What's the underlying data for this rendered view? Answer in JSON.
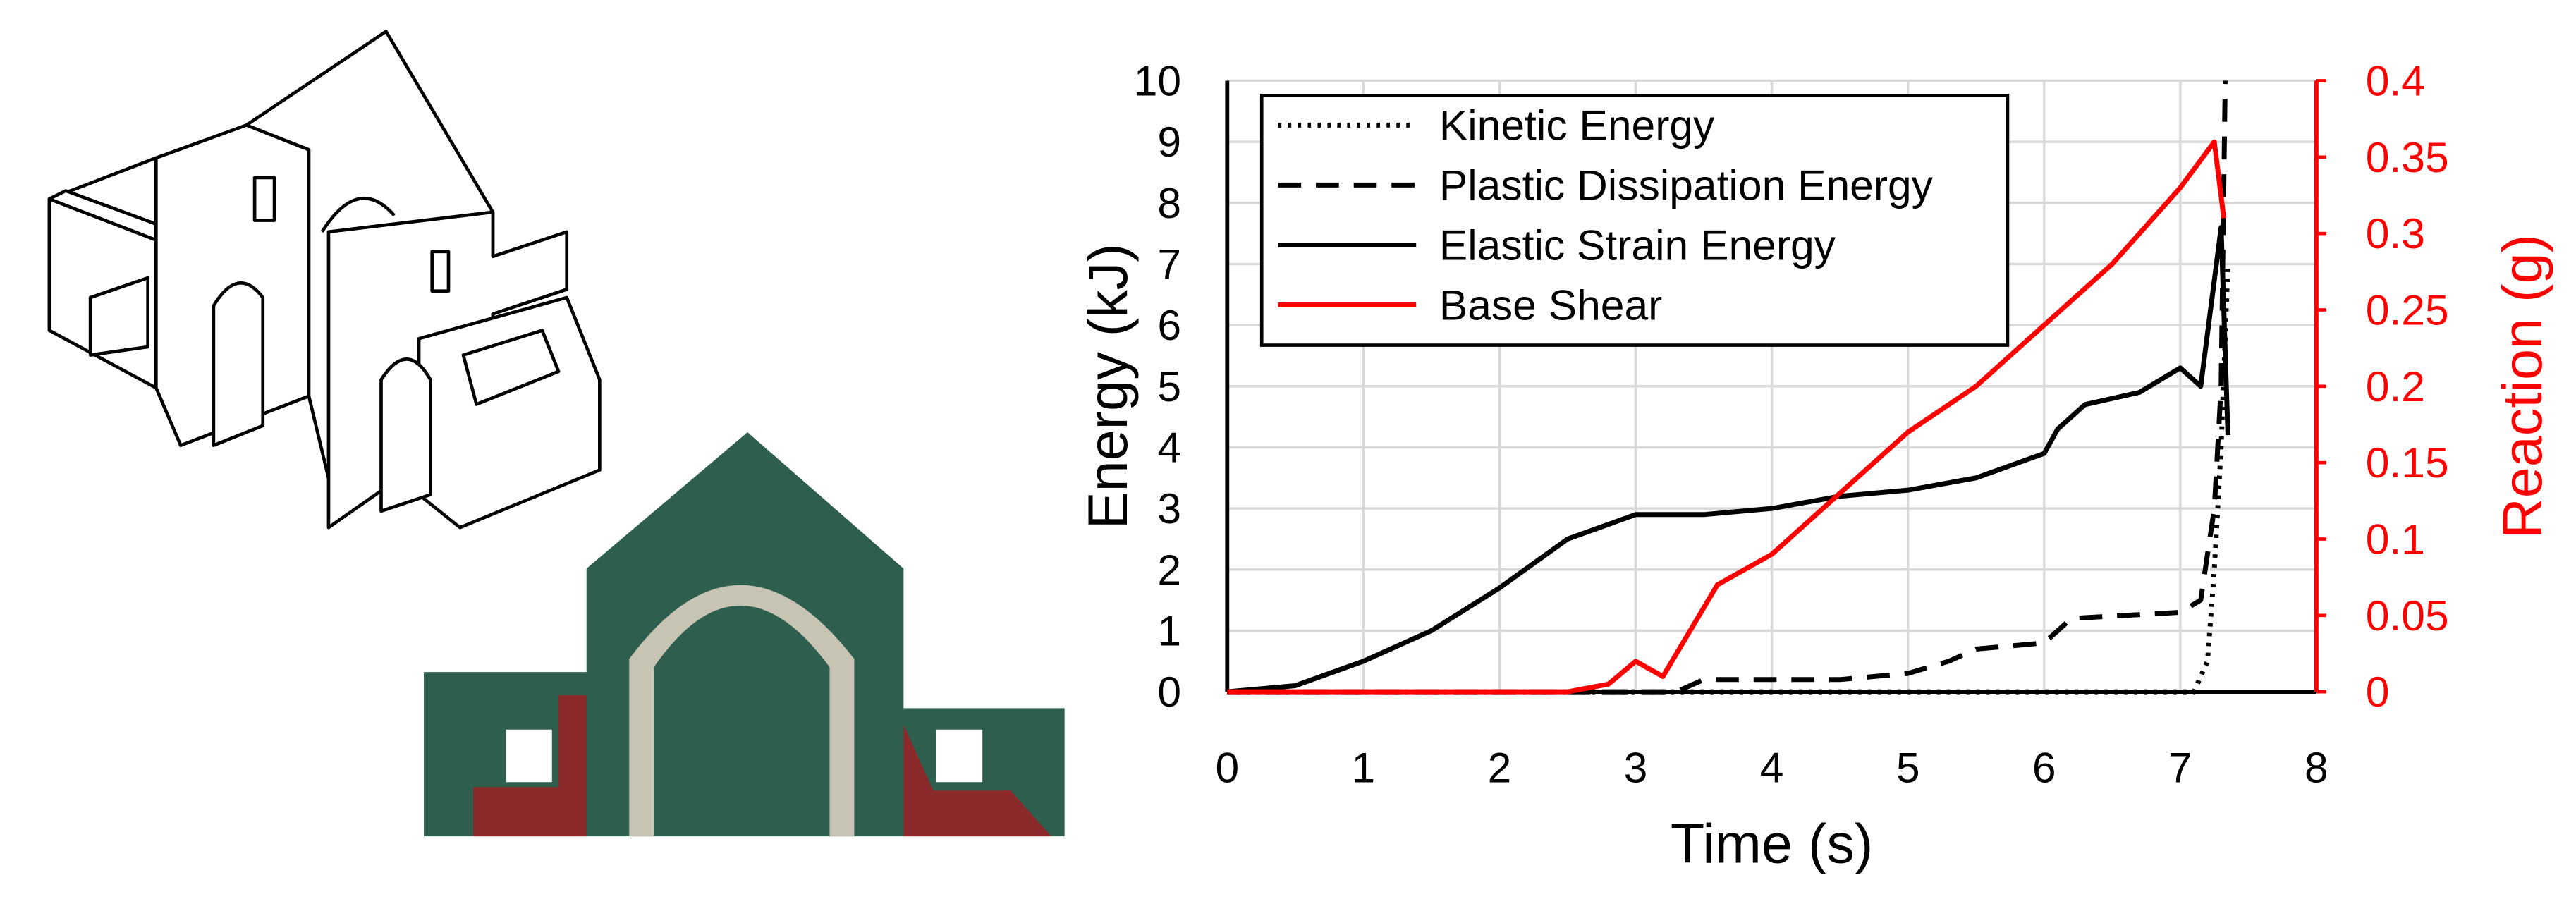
{
  "chart_data": {
    "type": "line",
    "xlabel": "Time (s)",
    "ylabel": "Energy (kJ)",
    "y2label": "Reaction (g)",
    "xlim": [
      0,
      8
    ],
    "xticks": [
      0,
      1,
      2,
      3,
      4,
      5,
      6,
      7,
      8
    ],
    "ylim": [
      0,
      10
    ],
    "yticks": [
      0,
      1,
      2,
      3,
      4,
      5,
      6,
      7,
      8,
      9,
      10
    ],
    "y2lim": [
      0,
      0.4
    ],
    "y2ticks": [
      0,
      0.05,
      0.1,
      0.15,
      0.2,
      0.25,
      0.3,
      0.35,
      0.4
    ],
    "y2color": "#ff0000",
    "grid": true,
    "legend": "upper left",
    "series": [
      {
        "name": "Kinetic Energy",
        "color": "#000000",
        "dash": "dotted",
        "x": [
          0,
          7.1,
          7.2,
          7.25,
          7.3,
          7.35
        ],
        "values": [
          0,
          0,
          0.5,
          2,
          4,
          7
        ]
      },
      {
        "name": "Plastic Dissipation Energy",
        "color": "#000000",
        "dash": "dashed",
        "x": [
          0,
          3.3,
          3.5,
          4.5,
          5,
          5.3,
          5.5,
          6,
          6.2,
          7,
          7.15,
          7.25,
          7.3,
          7.33
        ],
        "values": [
          0,
          0,
          0.2,
          0.2,
          0.3,
          0.5,
          0.7,
          0.8,
          1.2,
          1.3,
          1.5,
          3,
          5,
          10
        ]
      },
      {
        "name": "Elastic Strain Energy",
        "color": "#000000",
        "dash": "solid",
        "x": [
          0,
          0.5,
          1,
          1.5,
          2,
          2.5,
          3,
          3.5,
          4,
          4.5,
          5,
          5.5,
          6,
          6.1,
          6.3,
          6.7,
          7,
          7.15,
          7.3,
          7.35
        ],
        "values": [
          0,
          0.1,
          0.5,
          1,
          1.7,
          2.5,
          2.9,
          2.9,
          3,
          3.2,
          3.3,
          3.5,
          3.9,
          4.3,
          4.7,
          4.9,
          5.3,
          5,
          7.6,
          4.2
        ]
      },
      {
        "name": "Base Shear",
        "color": "#ff0000",
        "dash": "solid",
        "axis": "y2",
        "x": [
          0,
          2.5,
          2.8,
          3,
          3.2,
          3.4,
          3.6,
          4,
          4.5,
          5,
          5.5,
          6,
          6.5,
          7,
          7.25,
          7.32
        ],
        "values": [
          0,
          0,
          0.005,
          0.02,
          0.01,
          0.04,
          0.07,
          0.09,
          0.13,
          0.17,
          0.2,
          0.24,
          0.28,
          0.33,
          0.36,
          0.31
        ]
      }
    ]
  }
}
